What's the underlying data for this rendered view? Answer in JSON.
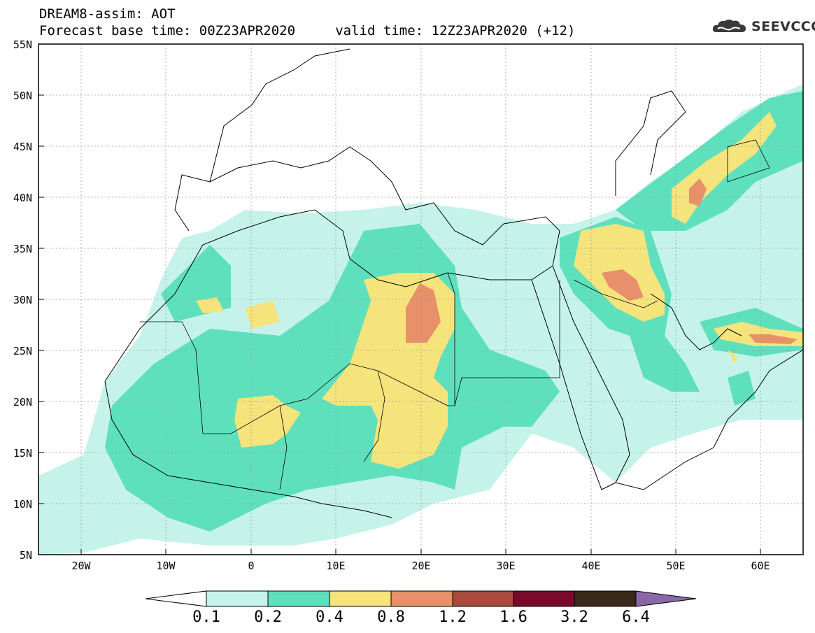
{
  "header": {
    "title_line_1": "DREAM8-assim: AOT",
    "title_line_2": "Forecast base time: 00Z23APR2020     valid time: 12Z23APR2020 (+12)"
  },
  "brand": {
    "name": "SEEVCCC",
    "icon": "cloud-logo-icon"
  },
  "map": {
    "lat_ticks": [
      "55N",
      "50N",
      "45N",
      "40N",
      "35N",
      "30N",
      "25N",
      "20N",
      "15N",
      "10N",
      "5N"
    ],
    "lon_ticks": [
      "20W",
      "10W",
      "0",
      "10E",
      "20E",
      "30E",
      "40E",
      "50E",
      "60E"
    ]
  },
  "colorbar": {
    "labels": [
      "0.1",
      "0.2",
      "0.4",
      "0.8",
      "1.2",
      "1.6",
      "3.2",
      "6.4"
    ],
    "colors": [
      "#ffffff",
      "#c5f3e9",
      "#5ee0bd",
      "#f5e37c",
      "#e8906a",
      "#a84a3c",
      "#7a0a2c",
      "#3a2818",
      "#8a68a8"
    ]
  },
  "field_colors": {
    "level_1": "#c5f3e9",
    "level_2": "#5ee0bd",
    "level_3": "#f5e37c",
    "level_4": "#e8906a"
  }
}
